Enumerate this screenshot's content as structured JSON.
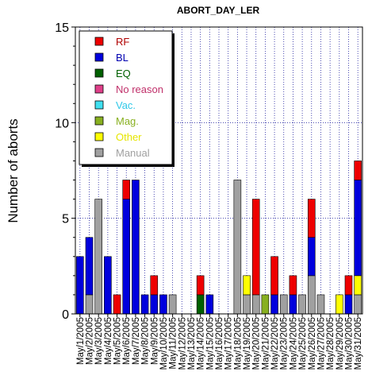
{
  "chart_data": {
    "type": "bar",
    "stacked": true,
    "title": "ABORT_DAY_LER",
    "xlabel": "",
    "ylabel": "Number of aborts",
    "ylim": [
      0,
      15
    ],
    "yticks": [
      0,
      5,
      10,
      15
    ],
    "grid": true,
    "legend_position": "top-left",
    "categories": [
      "May/1/2005",
      "May/2/2005",
      "May/3/2005",
      "May/4/2005",
      "May/5/2005",
      "May/6/2005",
      "May/7/2005",
      "May/8/2005",
      "May/9/2005",
      "May/10/2005",
      "May/11/2005",
      "May/12/2005",
      "May/13/2005",
      "May/14/2005",
      "May/15/2005",
      "May/16/2005",
      "May/17/2005",
      "May/18/2005",
      "May/19/2005",
      "May/20/2005",
      "May/21/2005",
      "May/22/2005",
      "May/23/2005",
      "May/24/2005",
      "May/25/2005",
      "May/26/2005",
      "May/27/2005",
      "May/28/2005",
      "May/29/2005",
      "May/30/2005",
      "May/31/2005"
    ],
    "series": [
      {
        "name": "Manual",
        "color": "#a0a0a0",
        "values": [
          0,
          1,
          6,
          0,
          0,
          0,
          0,
          0,
          0,
          0,
          1,
          0,
          0,
          0,
          0,
          0,
          0,
          7,
          1,
          1,
          0,
          0,
          1,
          0,
          1,
          2,
          1,
          0,
          0,
          0,
          1
        ]
      },
      {
        "name": "Other",
        "color": "#ffff00",
        "values": [
          0,
          0,
          0,
          0,
          0,
          0,
          0,
          0,
          0,
          0,
          0,
          0,
          0,
          0,
          0,
          0,
          0,
          0,
          1,
          0,
          0,
          0,
          0,
          0,
          0,
          0,
          0,
          0,
          1,
          0,
          1
        ]
      },
      {
        "name": "Mag.",
        "color": "#88b020",
        "values": [
          0,
          0,
          0,
          0,
          0,
          0,
          0,
          0,
          0,
          0,
          0,
          0,
          0,
          0,
          0,
          0,
          0,
          0,
          0,
          0,
          1,
          0,
          0,
          0,
          0,
          0,
          0,
          0,
          0,
          0,
          0
        ]
      },
      {
        "name": "Vac.",
        "color": "#40e0f0",
        "values": [
          0,
          0,
          0,
          0,
          0,
          0,
          0,
          0,
          0,
          0,
          0,
          0,
          0,
          0,
          0,
          0,
          0,
          0,
          0,
          0,
          0,
          0,
          0,
          0,
          0,
          0,
          0,
          0,
          0,
          0,
          0
        ]
      },
      {
        "name": "No reason",
        "color": "#e0408a",
        "values": [
          0,
          0,
          0,
          0,
          0,
          0,
          0,
          0,
          0,
          0,
          0,
          0,
          0,
          0,
          0,
          0,
          0,
          0,
          0,
          0,
          0,
          0,
          0,
          0,
          0,
          0,
          0,
          0,
          0,
          0,
          0
        ]
      },
      {
        "name": "EQ",
        "color": "#006000",
        "values": [
          0,
          0,
          0,
          0,
          0,
          0,
          0,
          0,
          0,
          0,
          0,
          0,
          0,
          1,
          0,
          0,
          0,
          0,
          0,
          0,
          0,
          0,
          0,
          0,
          0,
          0,
          0,
          0,
          0,
          0,
          0
        ]
      },
      {
        "name": "BL",
        "color": "#0000dd",
        "values": [
          3,
          3,
          0,
          3,
          0,
          6,
          7,
          1,
          1,
          1,
          0,
          0,
          0,
          0,
          1,
          0,
          0,
          0,
          0,
          0,
          0,
          1,
          0,
          1,
          0,
          2,
          0,
          0,
          0,
          1,
          5
        ]
      },
      {
        "name": "RF",
        "color": "#ee0000",
        "values": [
          0,
          0,
          0,
          0,
          1,
          1,
          0,
          0,
          1,
          0,
          0,
          0,
          0,
          1,
          0,
          0,
          0,
          0,
          0,
          5,
          0,
          2,
          0,
          1,
          0,
          2,
          0,
          0,
          0,
          1,
          1
        ]
      }
    ],
    "legend_order": [
      "RF",
      "BL",
      "EQ",
      "No reason",
      "Vac.",
      "Mag.",
      "Other",
      "Manual"
    ]
  }
}
